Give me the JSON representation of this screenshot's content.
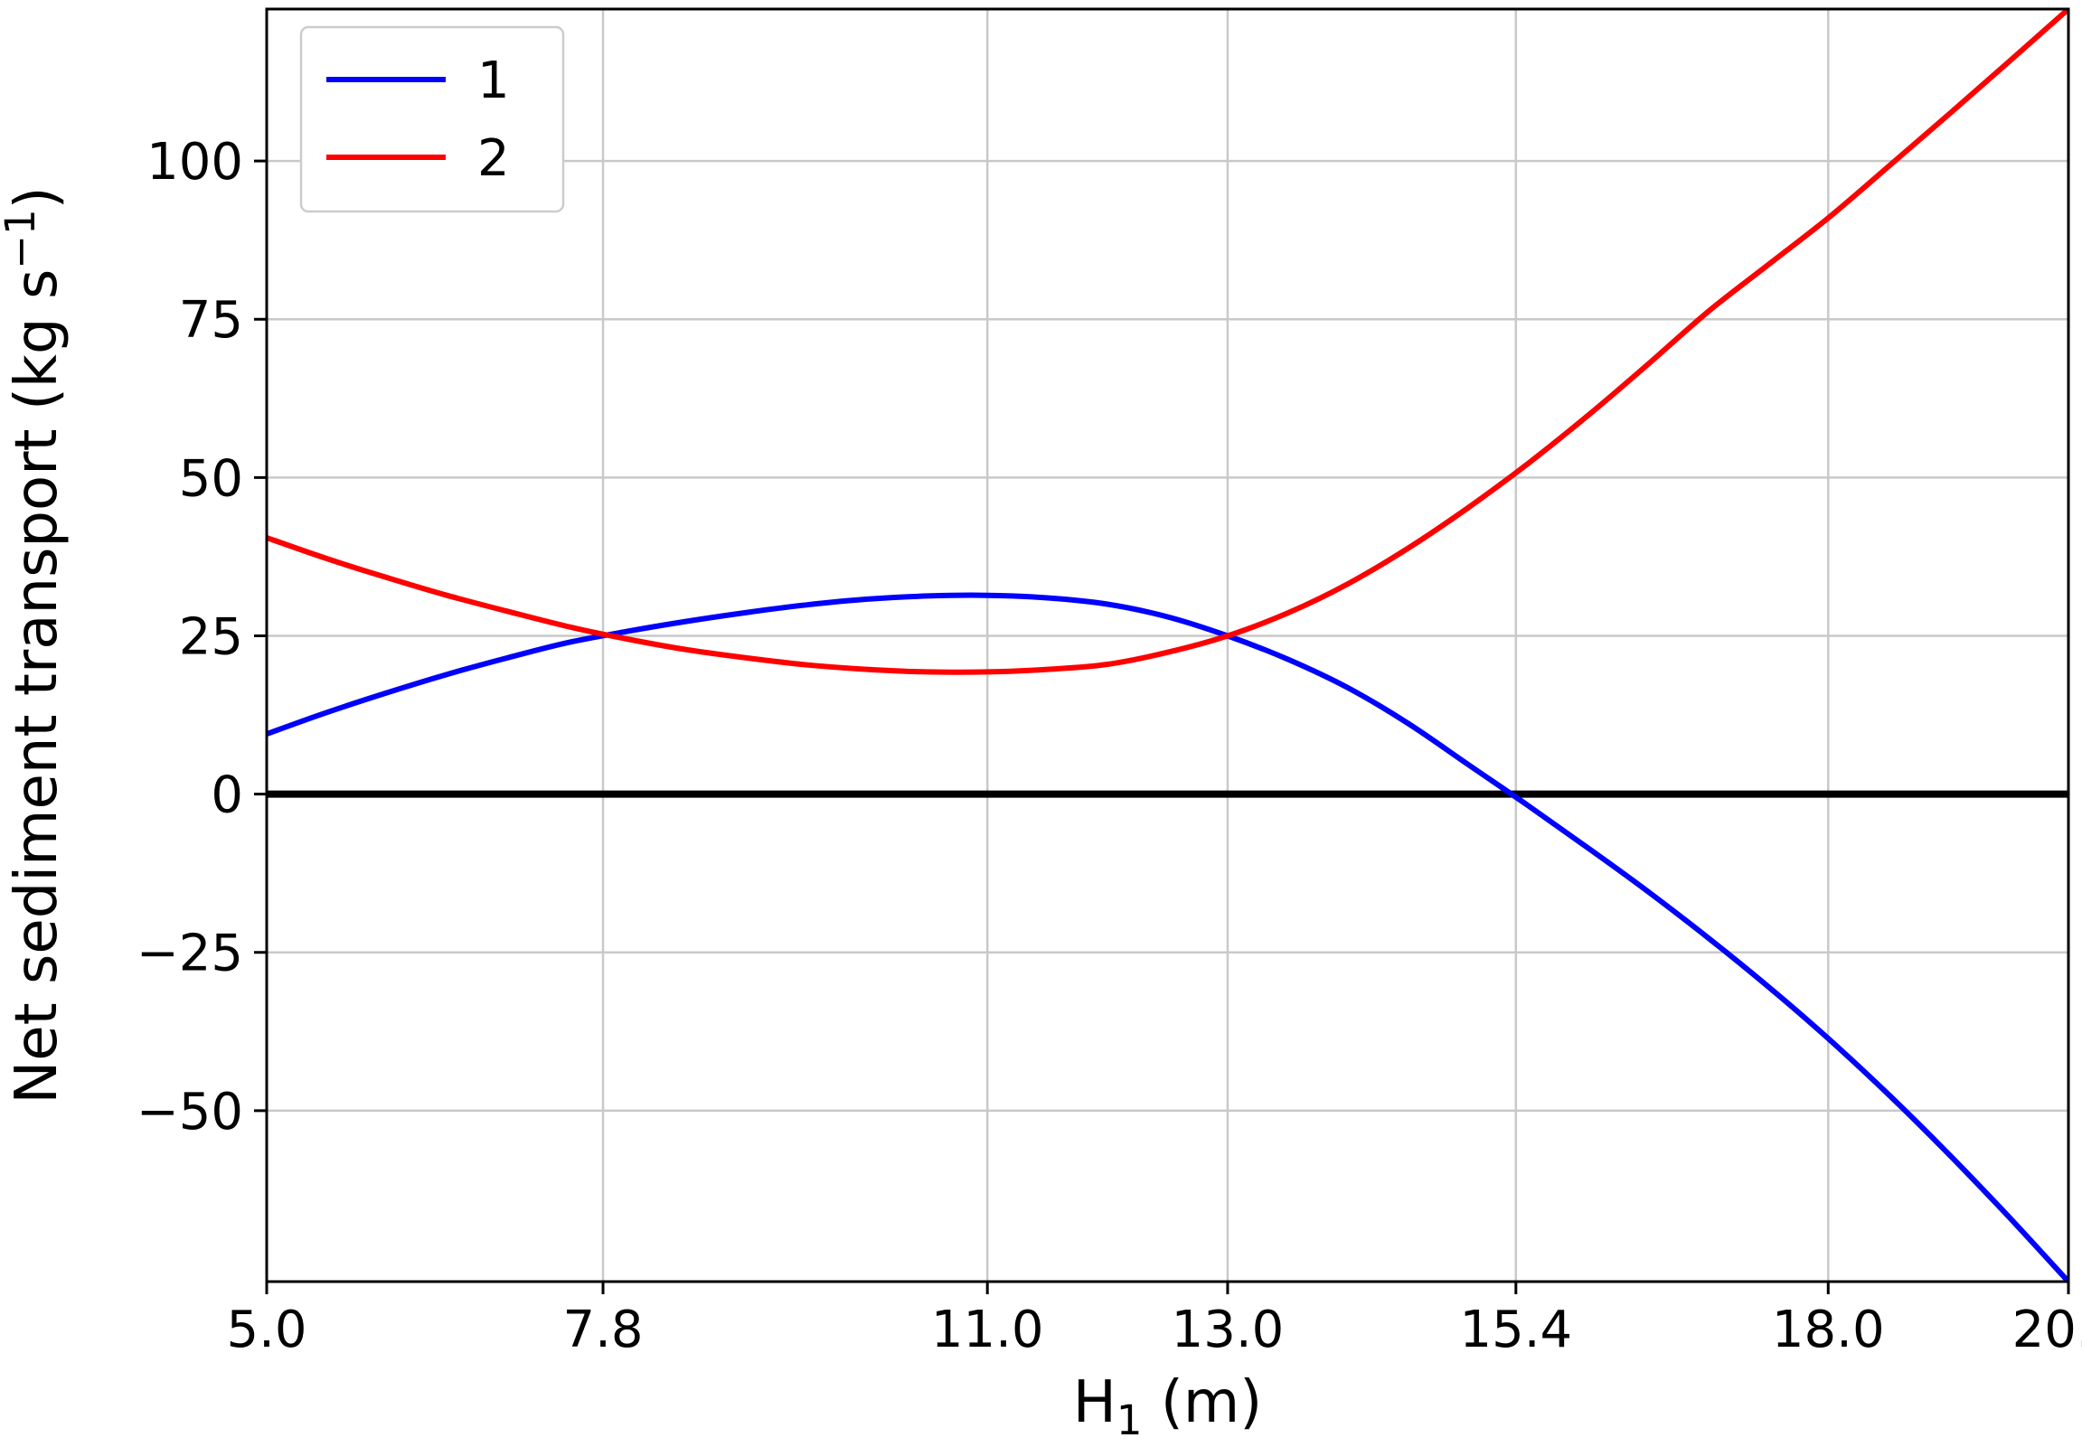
{
  "figure": {
    "background": "#ffffff"
  },
  "chart_data": {
    "type": "line",
    "title": "",
    "xlabel": {
      "base": "H",
      "sub": "1",
      "rest": " (m)"
    },
    "ylabel": {
      "base": "Net sediment transport (kg s",
      "sup": "−1",
      "rest": ")"
    },
    "xlim": [
      5.0,
      20.0
    ],
    "ylim": [
      -77,
      124
    ],
    "grid": true,
    "grid_color": "#c9c9c9",
    "axis_color": "#000000",
    "zero_line": {
      "value": 0,
      "color": "#000000",
      "width": 8
    },
    "x_ticks": {
      "values": [
        5.0,
        7.8,
        11.0,
        13.0,
        15.4,
        18.0,
        20.0
      ],
      "labels": [
        "5.0",
        "7.8",
        "11.0",
        "13.0",
        "15.4",
        "18.0",
        "20.0"
      ]
    },
    "y_ticks": {
      "values": [
        -50,
        -25,
        0,
        25,
        50,
        75,
        100
      ],
      "labels": [
        "−50",
        "−25",
        "0",
        "25",
        "50",
        "75",
        "100"
      ]
    },
    "legend": {
      "position": "upper left",
      "border_color": "#cccccc",
      "background": "#ffffff",
      "entries": [
        {
          "label": "1",
          "color": "#0000ff"
        },
        {
          "label": "2",
          "color": "#ff0000"
        }
      ]
    },
    "x": [
      5.0,
      5.5,
      6.0,
      6.5,
      7.0,
      7.5,
      8.0,
      8.5,
      9.0,
      9.5,
      10.0,
      10.5,
      11.0,
      11.5,
      12.0,
      12.5,
      13.0,
      13.5,
      14.0,
      14.5,
      15.0,
      15.5,
      16.0,
      16.5,
      17.0,
      17.5,
      18.0,
      18.5,
      19.0,
      19.5,
      20.0
    ],
    "series": [
      {
        "name": "1",
        "color": "#0000ff",
        "width": 6,
        "values": [
          9.5,
          12.9,
          16.0,
          18.9,
          21.5,
          23.9,
          25.7,
          27.3,
          28.7,
          29.9,
          30.8,
          31.3,
          31.4,
          31.0,
          30.0,
          28.0,
          25.0,
          21.3,
          16.8,
          11.2,
          4.7,
          -1.8,
          -8.5,
          -15.4,
          -22.7,
          -30.4,
          -38.6,
          -47.4,
          -56.8,
          -66.7,
          -77.0
        ]
      },
      {
        "name": "2",
        "color": "#ff0000",
        "width": 6,
        "values": [
          40.5,
          37.2,
          34.2,
          31.4,
          28.9,
          26.5,
          24.5,
          22.8,
          21.5,
          20.4,
          19.7,
          19.3,
          19.3,
          19.7,
          20.5,
          22.4,
          25.0,
          28.6,
          33.2,
          38.8,
          45.2,
          52.2,
          59.8,
          67.9,
          76.2,
          83.6,
          91.0,
          99.1,
          107.3,
          115.6,
          124.0
        ]
      }
    ]
  }
}
